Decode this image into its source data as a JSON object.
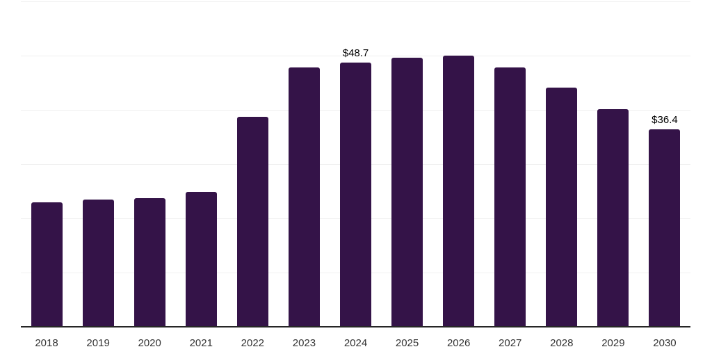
{
  "chart_data": {
    "type": "bar",
    "title": "",
    "xlabel": "",
    "ylabel": "",
    "categories": [
      "2018",
      "2019",
      "2020",
      "2021",
      "2022",
      "2023",
      "2024",
      "2025",
      "2026",
      "2027",
      "2028",
      "2029",
      "2030"
    ],
    "values": [
      22.9,
      23.4,
      23.7,
      24.9,
      38.7,
      47.8,
      48.7,
      49.6,
      50.0,
      47.8,
      44.1,
      40.1,
      36.4
    ],
    "data_labels": [
      null,
      null,
      null,
      null,
      null,
      null,
      "$48.7",
      null,
      null,
      null,
      null,
      null,
      "$36.4"
    ],
    "ylim": [
      0,
      60
    ],
    "gridline_interval": 10,
    "grid": true,
    "legend": "none",
    "y_tick_labels_shown": false,
    "colors": {
      "bar": "#341348",
      "gridline": "#f0f0f0",
      "axis_line": "#262626",
      "tick_label": "#333333",
      "data_label": "#000000",
      "background": "#ffffff"
    }
  }
}
